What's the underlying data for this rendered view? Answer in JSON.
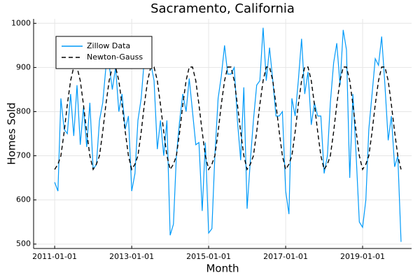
{
  "chart_data": {
    "type": "line",
    "title": "Sacramento, California",
    "x_label": "Month",
    "y_label": "Homes Sold",
    "x": [
      "2011-01-01",
      "2011-02-01",
      "2011-03-01",
      "2011-04-01",
      "2011-05-01",
      "2011-06-01",
      "2011-07-01",
      "2011-08-01",
      "2011-09-01",
      "2011-10-01",
      "2011-11-01",
      "2011-12-01",
      "2012-01-01",
      "2012-02-01",
      "2012-03-01",
      "2012-04-01",
      "2012-05-01",
      "2012-06-01",
      "2012-07-01",
      "2012-08-01",
      "2012-09-01",
      "2012-10-01",
      "2012-11-01",
      "2012-12-01",
      "2013-01-01",
      "2013-02-01",
      "2013-03-01",
      "2013-04-01",
      "2013-05-01",
      "2013-06-01",
      "2013-07-01",
      "2013-08-01",
      "2013-09-01",
      "2013-10-01",
      "2013-11-01",
      "2013-12-01",
      "2014-01-01",
      "2014-02-01",
      "2014-03-01",
      "2014-04-01",
      "2014-05-01",
      "2014-06-01",
      "2014-07-01",
      "2014-08-01",
      "2014-09-01",
      "2014-10-01",
      "2014-11-01",
      "2014-12-01",
      "2015-01-01",
      "2015-02-01",
      "2015-03-01",
      "2015-04-01",
      "2015-05-01",
      "2015-06-01",
      "2015-07-01",
      "2015-08-01",
      "2015-09-01",
      "2015-10-01",
      "2015-11-01",
      "2015-12-01",
      "2016-01-01",
      "2016-02-01",
      "2016-03-01",
      "2016-04-01",
      "2016-05-01",
      "2016-06-01",
      "2016-07-01",
      "2016-08-01",
      "2016-09-01",
      "2016-10-01",
      "2016-11-01",
      "2016-12-01",
      "2017-01-01",
      "2017-02-01",
      "2017-03-01",
      "2017-04-01",
      "2017-05-01",
      "2017-06-01",
      "2017-07-01",
      "2017-08-01",
      "2017-09-01",
      "2017-10-01",
      "2017-11-01",
      "2017-12-01",
      "2018-01-01",
      "2018-02-01",
      "2018-03-01",
      "2018-04-01",
      "2018-05-01",
      "2018-06-01",
      "2018-07-01",
      "2018-08-01",
      "2018-09-01",
      "2018-10-01",
      "2018-11-01",
      "2018-12-01",
      "2019-01-01",
      "2019-02-01",
      "2019-03-01",
      "2019-04-01",
      "2019-05-01",
      "2019-06-01",
      "2019-07-01",
      "2019-08-01",
      "2019-09-01",
      "2019-10-01",
      "2019-11-01",
      "2019-12-01",
      "2020-01-01"
    ],
    "series": [
      {
        "name": "Zillow Data",
        "color": "#009af9",
        "dash": false,
        "values": [
          640,
          620,
          830,
          760,
          750,
          840,
          745,
          860,
          725,
          810,
          720,
          820,
          670,
          680,
          780,
          820,
          900,
          905,
          850,
          900,
          800,
          840,
          760,
          790,
          620,
          660,
          780,
          830,
          920,
          900,
          910,
          870,
          715,
          780,
          700,
          780,
          520,
          545,
          700,
          780,
          840,
          800,
          875,
          800,
          725,
          730,
          575,
          730,
          525,
          535,
          700,
          830,
          880,
          950,
          885,
          885,
          900,
          780,
          690,
          855,
          580,
          690,
          780,
          860,
          870,
          990,
          870,
          945,
          870,
          790,
          790,
          800,
          620,
          568,
          830,
          790,
          870,
          965,
          840,
          890,
          770,
          820,
          790,
          790,
          660,
          700,
          820,
          910,
          955,
          860,
          985,
          940,
          650,
          840,
          700,
          550,
          538,
          600,
          760,
          840,
          920,
          905,
          970,
          860,
          735,
          790,
          675,
          700,
          505
        ]
      },
      {
        "name": "Newton-Gauss",
        "color": "#000000",
        "dash": true,
        "values": [
          669,
          681,
          700,
          754,
          816,
          870,
          901,
          901,
          870,
          816,
          754,
          700,
          669,
          681,
          700,
          754,
          816,
          870,
          901,
          901,
          870,
          816,
          754,
          700,
          669,
          681,
          700,
          754,
          816,
          870,
          901,
          901,
          870,
          816,
          754,
          700,
          669,
          681,
          700,
          754,
          816,
          870,
          901,
          901,
          870,
          816,
          754,
          700,
          669,
          681,
          700,
          754,
          816,
          870,
          901,
          901,
          870,
          816,
          754,
          700,
          669,
          681,
          700,
          754,
          816,
          870,
          901,
          901,
          870,
          816,
          754,
          700,
          669,
          681,
          700,
          754,
          816,
          870,
          901,
          901,
          870,
          816,
          754,
          700,
          669,
          681,
          700,
          754,
          816,
          870,
          901,
          901,
          870,
          816,
          754,
          700,
          669,
          681,
          700,
          754,
          816,
          870,
          901,
          901,
          870,
          816,
          754,
          700,
          669
        ]
      }
    ],
    "xlim": [
      "2010-06-15",
      "2020-04-10"
    ],
    "xticks": [
      "2011-01-01",
      "2013-01-01",
      "2015-01-01",
      "2017-01-01",
      "2019-01-01"
    ],
    "ylim": [
      490,
      1010
    ],
    "yticks": [
      500,
      600,
      700,
      800,
      900,
      1000
    ],
    "grid": true,
    "legend": "top-left"
  }
}
